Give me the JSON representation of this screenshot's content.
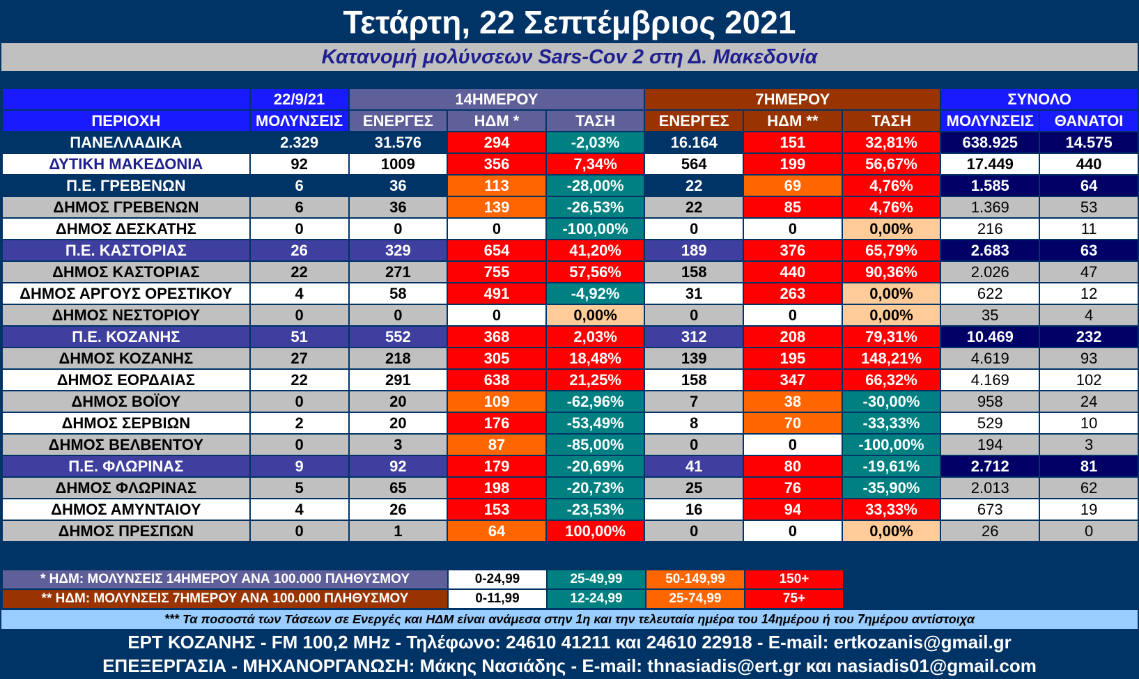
{
  "title": "Τετάρτη, 22 Σεπτέμβριος 2021",
  "subtitle": "Κατανομή μολύνσεων Sars-Cov 2 στη Δ. Μακεδονία",
  "headers": {
    "date": "22/9/21",
    "g14": "14ΗΜΕΡΟΥ",
    "g7": "7ΗΜΕΡΟΥ",
    "total": "ΣΥΝΟΛΟ",
    "region": "ΠΕΡΙΟΧΗ",
    "infections": "ΜΟΛΥΝΣΕΙΣ",
    "active14": "ΕΝΕΡΓΕΣ",
    "ndm14": "ΗΔΜ *",
    "trend14": "ΤΑΣΗ",
    "active7": "ΕΝΕΡΓΕΣ",
    "ndm7": "ΗΔΜ **",
    "trend7": "ΤΑΣΗ",
    "total_inf": "ΜΟΛΥΝΣΕΙΣ",
    "deaths": "ΘΑΝΑΤΟΙ"
  },
  "rows": [
    {
      "name": "ΠΑΝΕΛΛΑΔΙΚΑ",
      "type": "nat",
      "inf": "2.329",
      "a14": "31.576",
      "n14": "294",
      "n14c": "red",
      "t14": "-2,03%",
      "t14c": "teal",
      "a7": "16.164",
      "n7": "151",
      "n7c": "red",
      "t7": "32,81%",
      "t7c": "red",
      "ti": "638.925",
      "td": "14.575"
    },
    {
      "name": "ΔΥΤΙΚΗ ΜΑΚΕΔΟΝΙΑ",
      "type": "wm",
      "inf": "92",
      "a14": "1009",
      "n14": "356",
      "n14c": "red",
      "t14": "7,34%",
      "t14c": "red",
      "a7": "564",
      "n7": "199",
      "n7c": "red",
      "t7": "56,67%",
      "t7c": "red",
      "ti": "17.449",
      "td": "440"
    },
    {
      "name": "Π.Ε. ΓΡΕΒΕΝΩΝ",
      "type": "nat",
      "inf": "6",
      "a14": "36",
      "n14": "113",
      "n14c": "orange",
      "t14": "-28,00%",
      "t14c": "teal",
      "a7": "22",
      "n7": "69",
      "n7c": "orange",
      "t7": "4,76%",
      "t7c": "red",
      "ti": "1.585",
      "td": "64",
      "petot": true
    },
    {
      "name": "ΔΗΜΟΣ ΓΡΕΒΕΝΩΝ",
      "type": "gray",
      "inf": "6",
      "a14": "36",
      "n14": "139",
      "n14c": "orange",
      "t14": "-26,53%",
      "t14c": "teal",
      "a7": "22",
      "n7": "85",
      "n7c": "red",
      "t7": "4,76%",
      "t7c": "red",
      "ti": "1.369",
      "td": "53"
    },
    {
      "name": "ΔΗΜΟΣ ΔΕΣΚΑΤΗΣ",
      "type": "white",
      "inf": "0",
      "a14": "0",
      "n14": "0",
      "n14c": "wh",
      "t14": "-100,00%",
      "t14c": "teal",
      "a7": "0",
      "n7": "0",
      "n7c": "wh",
      "t7": "0,00%",
      "t7c": "peach",
      "ti": "216",
      "td": "11"
    },
    {
      "name": "Π.Ε. ΚΑΣΤΟΡΙΑΣ",
      "type": "pe",
      "inf": "26",
      "a14": "329",
      "n14": "654",
      "n14c": "red",
      "t14": "41,20%",
      "t14c": "red",
      "a7": "189",
      "n7": "376",
      "n7c": "red",
      "t7": "65,79%",
      "t7c": "red",
      "ti": "2.683",
      "td": "63"
    },
    {
      "name": "ΔΗΜΟΣ ΚΑΣΤΟΡΙΑΣ",
      "type": "gray",
      "inf": "22",
      "a14": "271",
      "n14": "755",
      "n14c": "red",
      "t14": "57,56%",
      "t14c": "red",
      "a7": "158",
      "n7": "440",
      "n7c": "red",
      "t7": "90,36%",
      "t7c": "red",
      "ti": "2.026",
      "td": "47"
    },
    {
      "name": "ΔΗΜΟΣ ΑΡΓΟΥΣ ΟΡΕΣΤΙΚΟΥ",
      "type": "white",
      "inf": "4",
      "a14": "58",
      "n14": "491",
      "n14c": "red",
      "t14": "-4,92%",
      "t14c": "teal",
      "a7": "31",
      "n7": "263",
      "n7c": "red",
      "t7": "0,00%",
      "t7c": "peach",
      "ti": "622",
      "td": "12"
    },
    {
      "name": "ΔΗΜΟΣ ΝΕΣΤΟΡΙΟΥ",
      "type": "gray",
      "inf": "0",
      "a14": "0",
      "n14": "0",
      "n14c": "wh",
      "t14": "0,00%",
      "t14c": "peach",
      "a7": "0",
      "n7": "0",
      "n7c": "wh",
      "t7": "0,00%",
      "t7c": "peach",
      "ti": "35",
      "td": "4"
    },
    {
      "name": "Π.Ε. ΚΟΖΑΝΗΣ",
      "type": "pe",
      "inf": "51",
      "a14": "552",
      "n14": "368",
      "n14c": "red",
      "t14": "2,03%",
      "t14c": "red",
      "a7": "312",
      "n7": "208",
      "n7c": "red",
      "t7": "79,31%",
      "t7c": "red",
      "ti": "10.469",
      "td": "232"
    },
    {
      "name": "ΔΗΜΟΣ ΚΟΖΑΝΗΣ",
      "type": "gray",
      "inf": "27",
      "a14": "218",
      "n14": "305",
      "n14c": "red",
      "t14": "18,48%",
      "t14c": "red",
      "a7": "139",
      "n7": "195",
      "n7c": "red",
      "t7": "148,21%",
      "t7c": "red",
      "ti": "4.619",
      "td": "93"
    },
    {
      "name": "ΔΗΜΟΣ ΕΟΡΔΑΙΑΣ",
      "type": "white",
      "inf": "22",
      "a14": "291",
      "n14": "638",
      "n14c": "red",
      "t14": "21,25%",
      "t14c": "red",
      "a7": "158",
      "n7": "347",
      "n7c": "red",
      "t7": "66,32%",
      "t7c": "red",
      "ti": "4.169",
      "td": "102"
    },
    {
      "name": "ΔΗΜΟΣ ΒΟΪΟΥ",
      "type": "gray",
      "inf": "0",
      "a14": "20",
      "n14": "109",
      "n14c": "orange",
      "t14": "-62,96%",
      "t14c": "teal",
      "a7": "7",
      "n7": "38",
      "n7c": "orange",
      "t7": "-30,00%",
      "t7c": "teal",
      "ti": "958",
      "td": "24"
    },
    {
      "name": "ΔΗΜΟΣ ΣΕΡΒΙΩΝ",
      "type": "white",
      "inf": "2",
      "a14": "20",
      "n14": "176",
      "n14c": "red",
      "t14": "-53,49%",
      "t14c": "teal",
      "a7": "8",
      "n7": "70",
      "n7c": "orange",
      "t7": "-33,33%",
      "t7c": "teal",
      "ti": "529",
      "td": "10"
    },
    {
      "name": "ΔΗΜΟΣ ΒΕΛΒΕΝΤΟΥ",
      "type": "gray",
      "inf": "0",
      "a14": "3",
      "n14": "87",
      "n14c": "orange",
      "t14": "-85,00%",
      "t14c": "teal",
      "a7": "0",
      "n7": "0",
      "n7c": "wh",
      "t7": "-100,00%",
      "t7c": "teal",
      "ti": "194",
      "td": "3"
    },
    {
      "name": "Π.Ε. ΦΛΩΡΙΝΑΣ",
      "type": "pe",
      "inf": "9",
      "a14": "92",
      "n14": "179",
      "n14c": "red",
      "t14": "-20,69%",
      "t14c": "teal",
      "a7": "41",
      "n7": "80",
      "n7c": "red",
      "t7": "-19,61%",
      "t7c": "teal",
      "ti": "2.712",
      "td": "81"
    },
    {
      "name": "ΔΗΜΟΣ ΦΛΩΡΙΝΑΣ",
      "type": "gray",
      "inf": "5",
      "a14": "65",
      "n14": "198",
      "n14c": "red",
      "t14": "-20,73%",
      "t14c": "teal",
      "a7": "25",
      "n7": "76",
      "n7c": "red",
      "t7": "-35,90%",
      "t7c": "teal",
      "ti": "2.013",
      "td": "62"
    },
    {
      "name": "ΔΗΜΟΣ ΑΜΥΝΤΑΙΟΥ",
      "type": "white",
      "inf": "4",
      "a14": "26",
      "n14": "153",
      "n14c": "red",
      "t14": "-23,53%",
      "t14c": "teal",
      "a7": "16",
      "n7": "94",
      "n7c": "red",
      "t7": "33,33%",
      "t7c": "red",
      "ti": "673",
      "td": "19"
    },
    {
      "name": "ΔΗΜΟΣ ΠΡΕΣΠΩΝ",
      "type": "gray",
      "inf": "0",
      "a14": "1",
      "n14": "64",
      "n14c": "orange",
      "t14": "100,00%",
      "t14c": "red",
      "a7": "0",
      "n7": "0",
      "n7c": "wh",
      "t7": "0,00%",
      "t7c": "peach",
      "ti": "26",
      "td": "0"
    }
  ],
  "legend": {
    "l14_label": "* ΗΔΜ: ΜΟΛΥΝΣΕΙΣ 14ΗΜΕΡΟΥ ΑΝΑ 100.000 ΠΛΗΘΥΣΜΟΥ",
    "l14": [
      "0-24,99",
      "25-49,99",
      "50-149,99",
      "150+"
    ],
    "l7_label": "** ΗΔΜ: ΜΟΛΥΝΣΕΙΣ 7ΗΜΕΡΟΥ ΑΝΑ 100.000 ΠΛΗΘΥΣΜΟΥ",
    "l7": [
      "0-11,99",
      "12-24,99",
      "25-74,99",
      "75+"
    ]
  },
  "note": "*** Τα ποσοστά των Τάσεων σε Ενεργές και ΗΔΜ είναι ανάμεσα στην 1η και την τελευταία ημέρα του 14ημέρου ή του 7ημέρου αντίστοιχα",
  "footer": {
    "line1": "ΕΡΤ ΚΟΖΑΝΗΣ - FM 100,2 MHz - Τηλέφωνο:  24610 41211 και 24610 22918 - E-mail: ertkozanis@gmail.gr",
    "line2": "ΕΠΕΞΕΡΓΑΣΙΑ  -  ΜΗΧΑΝΟΡΓΑΝΩΣΗ: Μάκης Νασιάδης  -   E-mail: thnasiadis@ert.gr και nasiadis01@gmail.com"
  },
  "colors": {
    "red": "#ff0000",
    "orange": "#ff6600",
    "teal": "#008080",
    "peach": "#ffcc99",
    "white": "#ffffff",
    "background": "#003366"
  }
}
